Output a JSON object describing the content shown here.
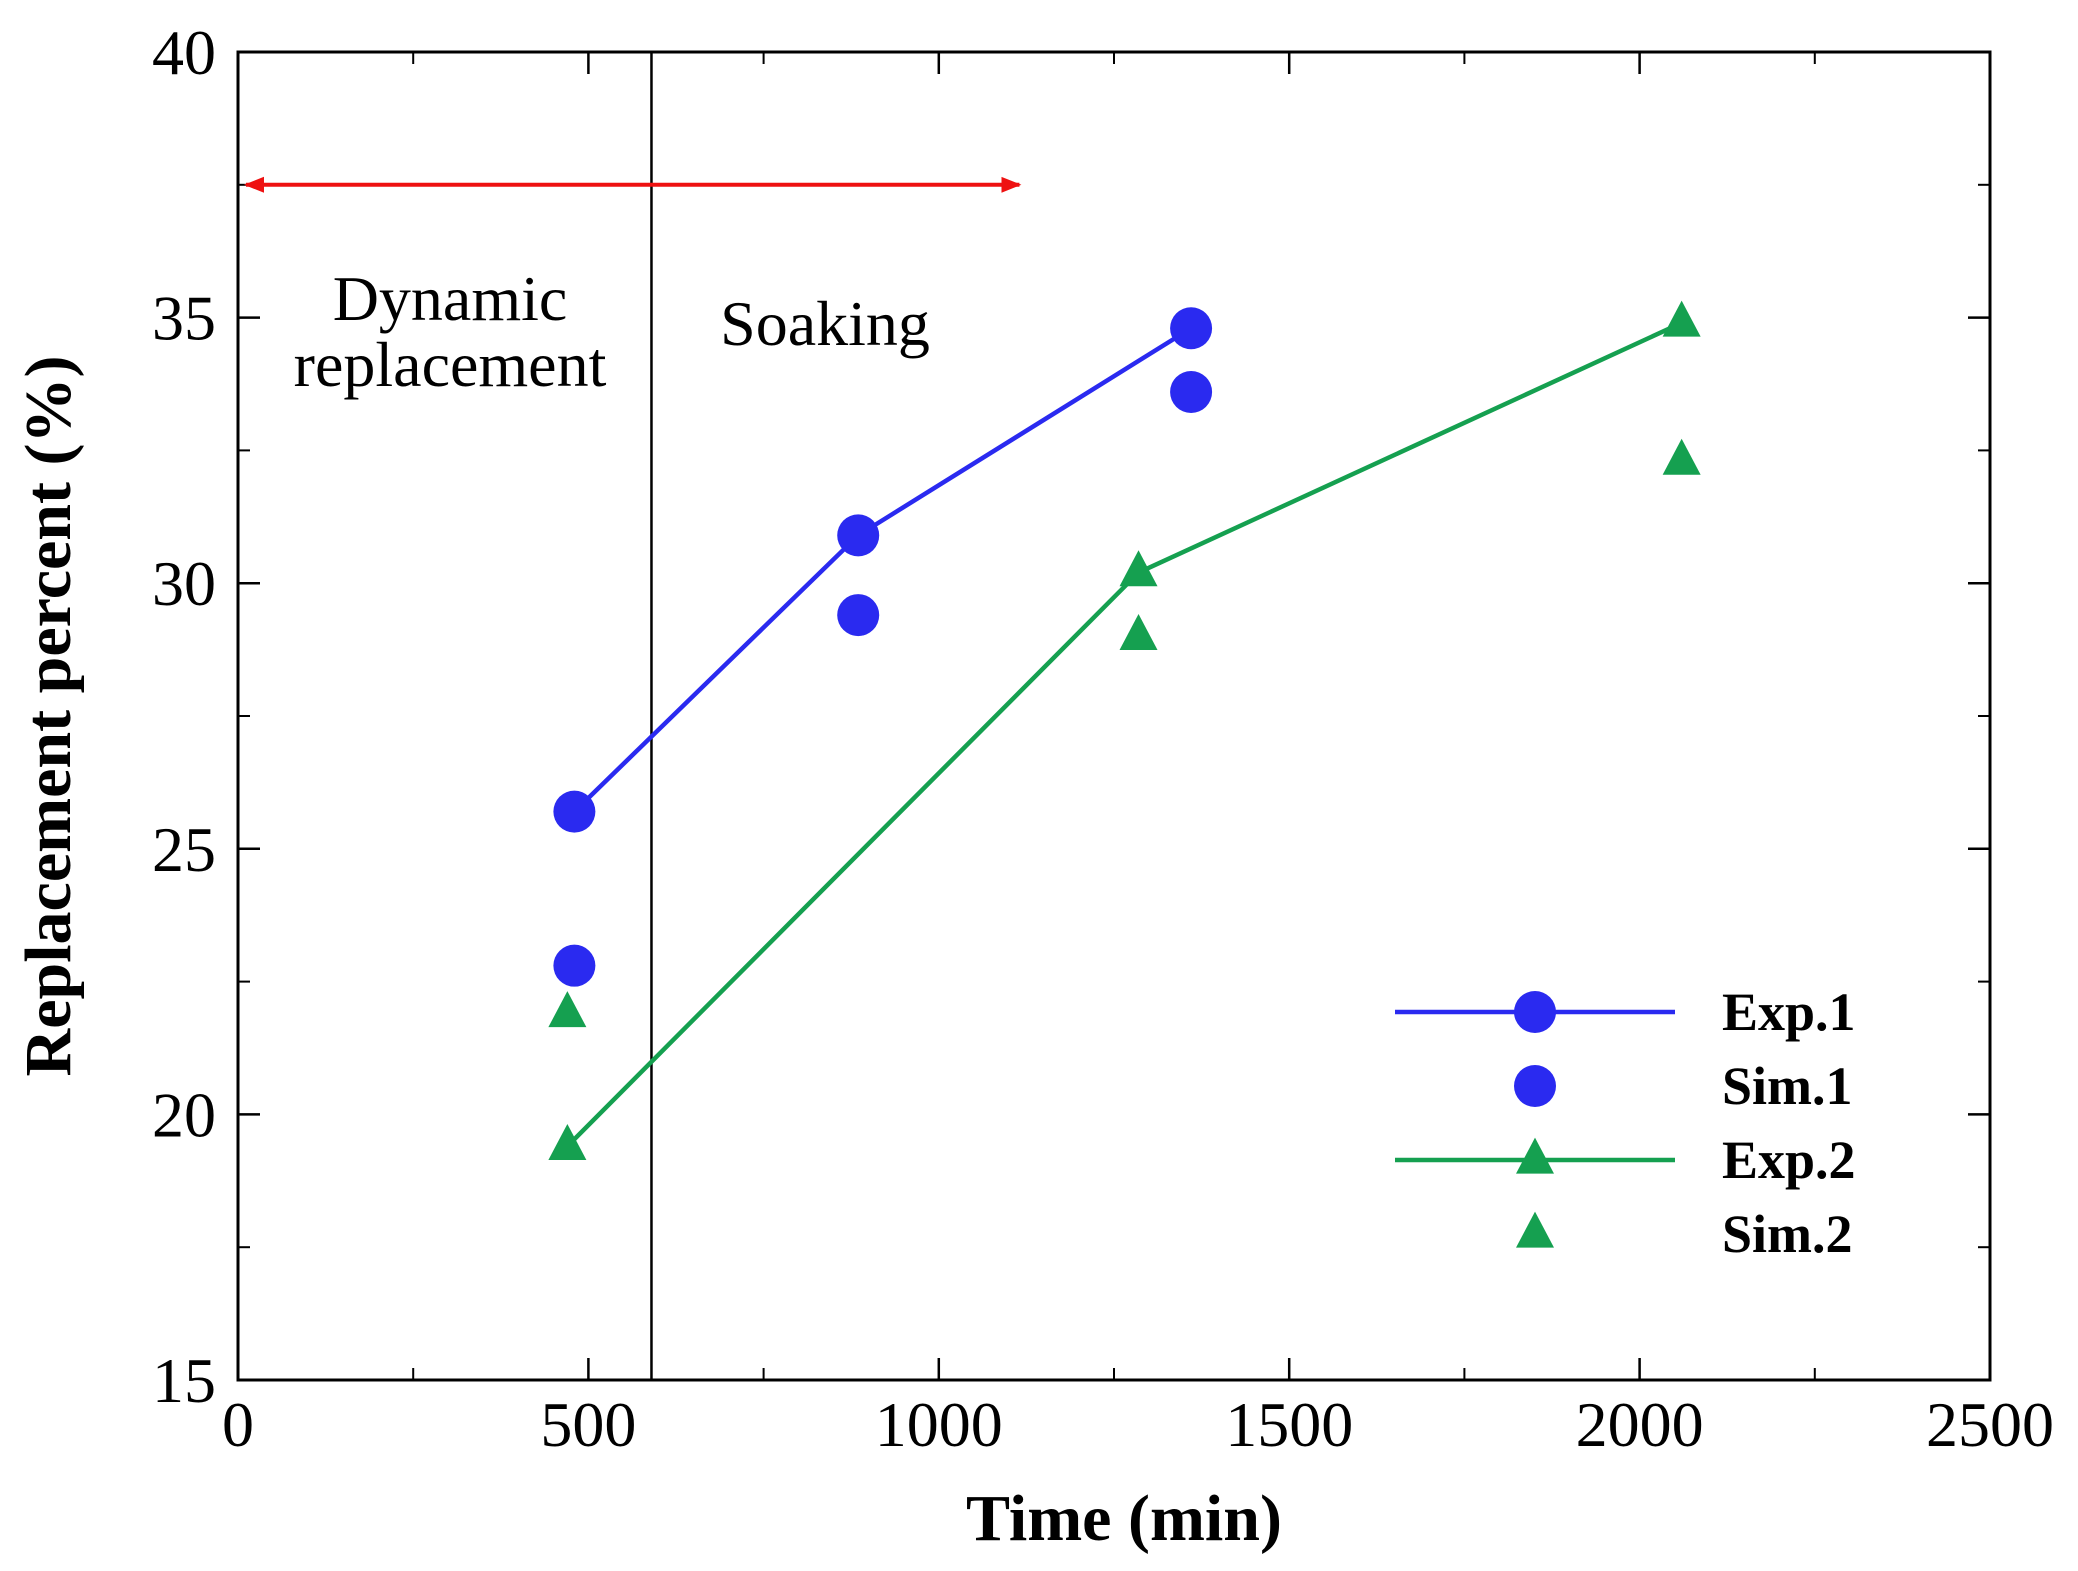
{
  "chart_data": {
    "type": "line",
    "title": "",
    "xlabel": "Time (min)",
    "ylabel": "Replacement percent (%)",
    "xlim": [
      0,
      2500
    ],
    "ylim": [
      15,
      40
    ],
    "x_ticks": [
      0,
      500,
      1000,
      1500,
      2000,
      2500
    ],
    "y_ticks": [
      15,
      20,
      25,
      30,
      35,
      40
    ],
    "x_minor_step": 250,
    "y_minor_step": 2.5,
    "grid": false,
    "legend_position": "bottom-right",
    "colors": {
      "blue": "#2a2af0",
      "green": "#15a050",
      "red": "#ee1111"
    },
    "series": [
      {
        "name": "Exp.1",
        "style": "line+circle",
        "color": "blue",
        "x": [
          480,
          885,
          1360
        ],
        "y": [
          25.7,
          30.9,
          34.8
        ]
      },
      {
        "name": "Sim.1",
        "style": "circle",
        "color": "blue",
        "x": [
          480,
          885,
          1360
        ],
        "y": [
          22.8,
          29.4,
          33.6
        ]
      },
      {
        "name": "Exp.2",
        "style": "line+triangle",
        "color": "green",
        "x": [
          470,
          1285,
          2060
        ],
        "y": [
          19.4,
          30.2,
          34.9
        ]
      },
      {
        "name": "Sim.2",
        "style": "triangle",
        "color": "green",
        "x": [
          470,
          1285,
          2060
        ],
        "y": [
          21.9,
          29.0,
          32.3
        ]
      }
    ],
    "divider_x": 590,
    "arrow": {
      "x_start": 0,
      "x_end": 1115,
      "y": 37.5,
      "color": "red"
    },
    "annotations": [
      {
        "lines": [
          "Dynamic",
          "replacement"
        ],
        "region": "left"
      },
      {
        "lines": [
          "Soaking"
        ],
        "region": "right"
      }
    ]
  }
}
